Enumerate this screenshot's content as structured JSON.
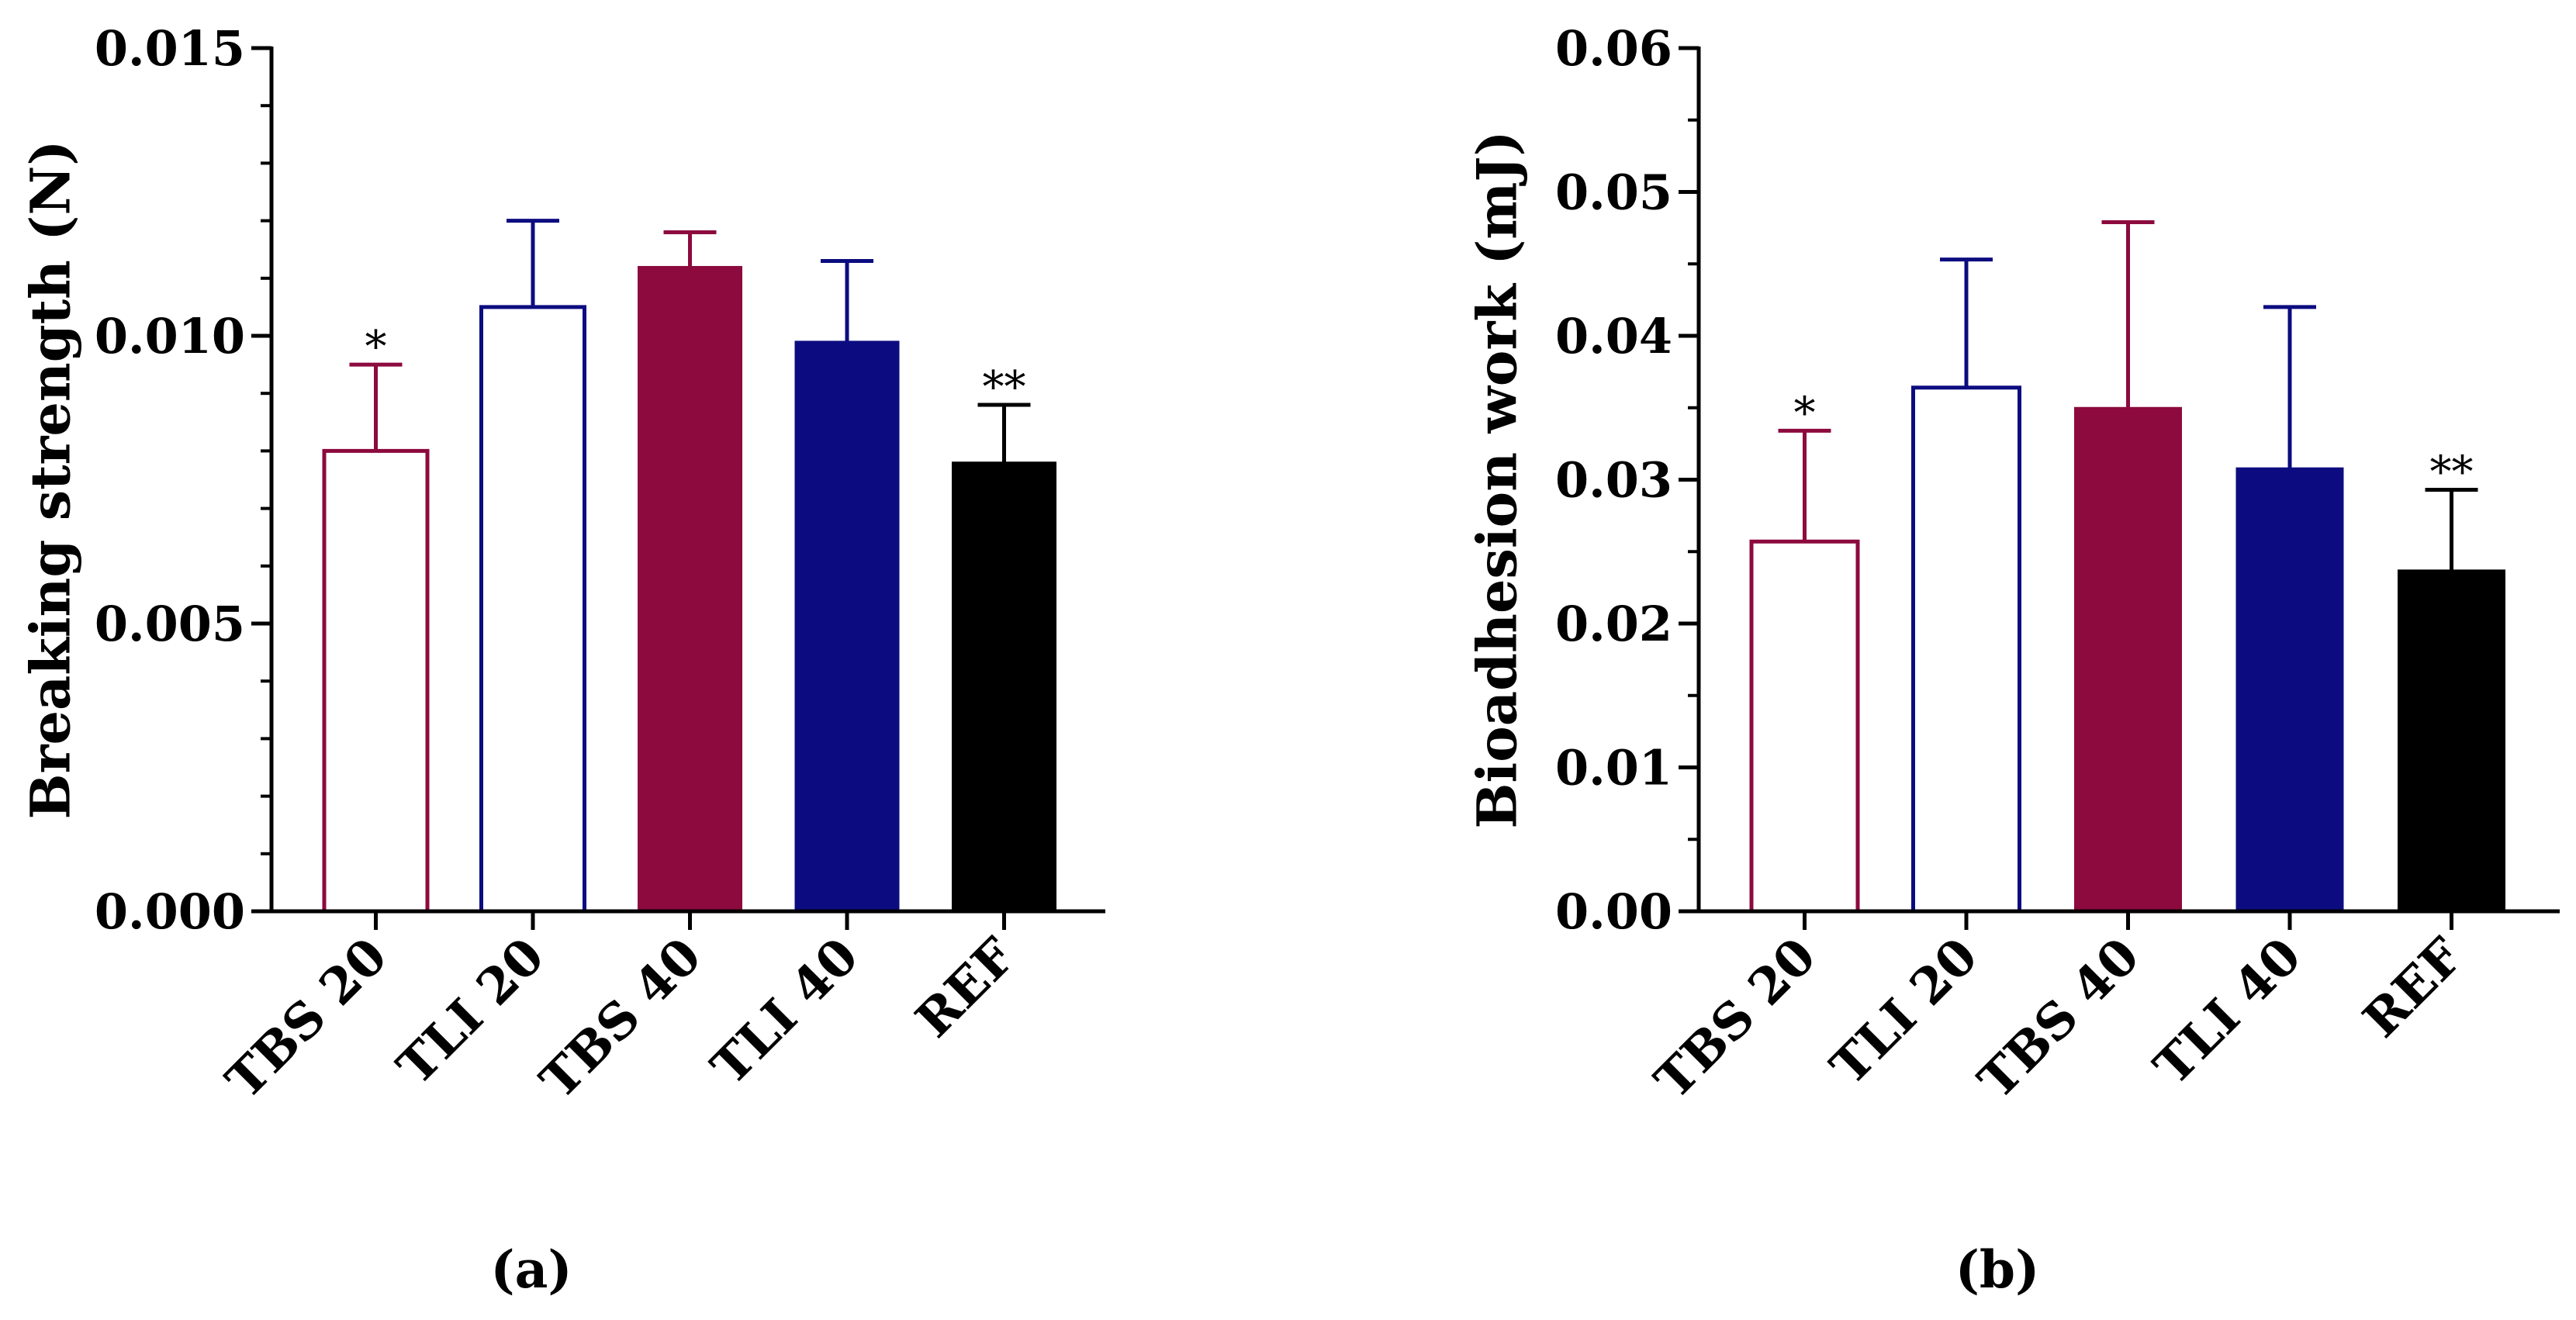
{
  "chart_data": [
    {
      "type": "bar",
      "panel_label": "(a)",
      "title": "",
      "xlabel": "",
      "ylabel": "Breaking strength (N)",
      "categories": [
        "TBS 20",
        "TLI 20",
        "TBS 40",
        "TLI 40",
        "REF"
      ],
      "values": [
        0.008,
        0.0105,
        0.0112,
        0.0099,
        0.0078
      ],
      "errors": [
        0.0015,
        0.0015,
        0.0006,
        0.0014,
        0.001
      ],
      "significance": [
        "*",
        "",
        "",
        "",
        "**"
      ],
      "ylim": [
        0,
        0.015
      ],
      "yticks": [
        0.0,
        0.005,
        0.01,
        0.015
      ],
      "ytick_labels": [
        "0.000",
        "0.005",
        "0.010",
        "0.015"
      ],
      "minor_ticks_per_major": 5,
      "bar_styles": [
        {
          "fill": "#ffffff",
          "stroke": "#8c0a3e"
        },
        {
          "fill": "#ffffff",
          "stroke": "#0c0c80"
        },
        {
          "fill": "#8c0a3e",
          "stroke": "#8c0a3e"
        },
        {
          "fill": "#0c0c80",
          "stroke": "#0c0c80"
        },
        {
          "fill": "#000000",
          "stroke": "#000000"
        }
      ],
      "grid": false
    },
    {
      "type": "bar",
      "panel_label": "(b)",
      "title": "",
      "xlabel": "",
      "ylabel": "Bioadhesion work (mJ)",
      "categories": [
        "TBS 20",
        "TLI 20",
        "TBS 40",
        "TLI 40",
        "REF"
      ],
      "values": [
        0.0257,
        0.0364,
        0.035,
        0.0308,
        0.0237
      ],
      "errors": [
        0.0077,
        0.0089,
        0.0129,
        0.0112,
        0.0056
      ],
      "significance": [
        "*",
        "",
        "",
        "",
        "**"
      ],
      "ylim": [
        0,
        0.06
      ],
      "yticks": [
        0.0,
        0.01,
        0.02,
        0.03,
        0.04,
        0.05,
        0.06
      ],
      "ytick_labels": [
        "0.00",
        "0.01",
        "0.02",
        "0.03",
        "0.04",
        "0.05",
        "0.06"
      ],
      "minor_ticks_per_major": 2,
      "bar_styles": [
        {
          "fill": "#ffffff",
          "stroke": "#8c0a3e"
        },
        {
          "fill": "#ffffff",
          "stroke": "#0c0c80"
        },
        {
          "fill": "#8c0a3e",
          "stroke": "#8c0a3e"
        },
        {
          "fill": "#0c0c80",
          "stroke": "#0c0c80"
        },
        {
          "fill": "#000000",
          "stroke": "#000000"
        }
      ],
      "grid": false
    }
  ]
}
